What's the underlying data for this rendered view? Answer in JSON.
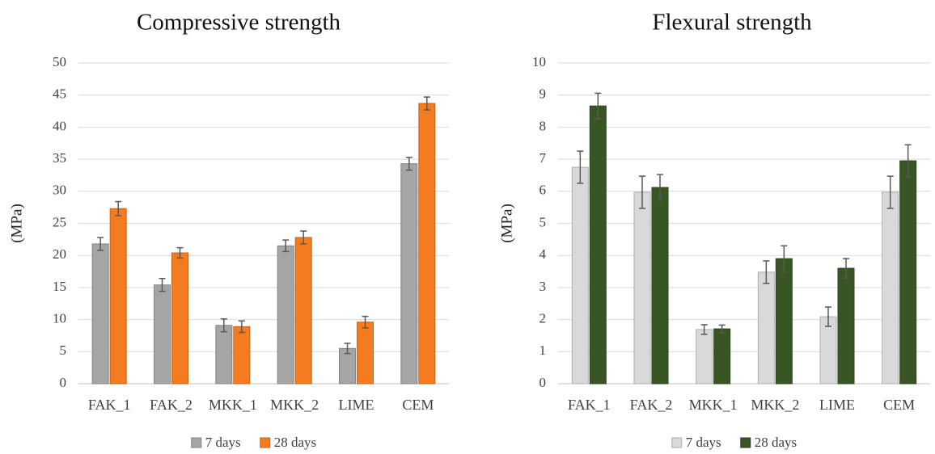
{
  "chart_data": [
    {
      "type": "bar",
      "title": "Compressive strength",
      "y_label": "(MPa)",
      "categories": [
        "FAK_1",
        "FAK_2",
        "MKK_1",
        "MKK_2",
        "LIME",
        "CEM"
      ],
      "series": [
        {
          "name": "7 days",
          "color": "#a5a5a5",
          "values": [
            21.8,
            15.4,
            9.1,
            21.5,
            5.5,
            34.3
          ],
          "errors": [
            1,
            1,
            1,
            0.9,
            0.8,
            1
          ]
        },
        {
          "name": "28 days",
          "color": "#f47b20",
          "values": [
            27.3,
            20.4,
            8.9,
            22.8,
            9.6,
            43.7
          ],
          "errors": [
            1.1,
            0.8,
            0.9,
            1,
            0.9,
            1
          ]
        }
      ],
      "ylim": [
        0,
        50
      ],
      "yticks": [
        0,
        5,
        10,
        15,
        20,
        25,
        30,
        35,
        40,
        45,
        50
      ],
      "grid": true,
      "legend": "bottom"
    },
    {
      "type": "bar",
      "title": "Flexural strength",
      "y_label": "(MPa)",
      "categories": [
        "FAK_1",
        "FAK_2",
        "MKK_1",
        "MKK_2",
        "LIME",
        "CEM"
      ],
      "series": [
        {
          "name": "7 days",
          "color": "#d9d9d9",
          "values": [
            6.75,
            5.97,
            1.69,
            3.48,
            2.09,
            5.97
          ],
          "errors": [
            0.5,
            0.5,
            0.15,
            0.35,
            0.3,
            0.5
          ]
        },
        {
          "name": "28 days",
          "color": "#375623",
          "values": [
            8.66,
            6.12,
            1.71,
            3.9,
            3.6,
            6.95
          ],
          "errors": [
            0.4,
            0.4,
            0.12,
            0.4,
            0.3,
            0.5
          ]
        }
      ],
      "ylim": [
        0,
        10
      ],
      "yticks": [
        0,
        1,
        2,
        3,
        4,
        5,
        6,
        7,
        8,
        9,
        10
      ],
      "grid": true,
      "legend": "bottom"
    }
  ]
}
